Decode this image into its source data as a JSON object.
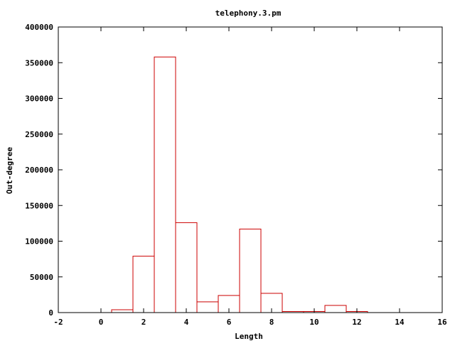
{
  "chart_data": {
    "type": "bar",
    "title": "telephony.3.pm",
    "xlabel": "Length",
    "ylabel": "Out-degree",
    "xlim": [
      -2,
      16
    ],
    "ylim": [
      0,
      400000
    ],
    "xticks": [
      -2,
      0,
      2,
      4,
      6,
      8,
      10,
      12,
      14,
      16
    ],
    "yticks": [
      0,
      50000,
      100000,
      150000,
      200000,
      250000,
      300000,
      350000,
      400000
    ],
    "xtick_labels": [
      "-2",
      "0",
      "2",
      "4",
      "6",
      "8",
      "10",
      "12",
      "14",
      "16"
    ],
    "ytick_labels": [
      "0",
      "50000",
      "100000",
      "150000",
      "200000",
      "250000",
      "300000",
      "350000",
      "400000"
    ],
    "bar_width": 1,
    "x": [
      1,
      2,
      3,
      4,
      5,
      6,
      7,
      8,
      9,
      10,
      11,
      12
    ],
    "values": [
      4000,
      79000,
      358000,
      126000,
      15000,
      24000,
      117000,
      27000,
      1500,
      1500,
      10000,
      1500
    ],
    "bar_color": "#cc0000",
    "axis_color": "#000000",
    "grid": false
  }
}
